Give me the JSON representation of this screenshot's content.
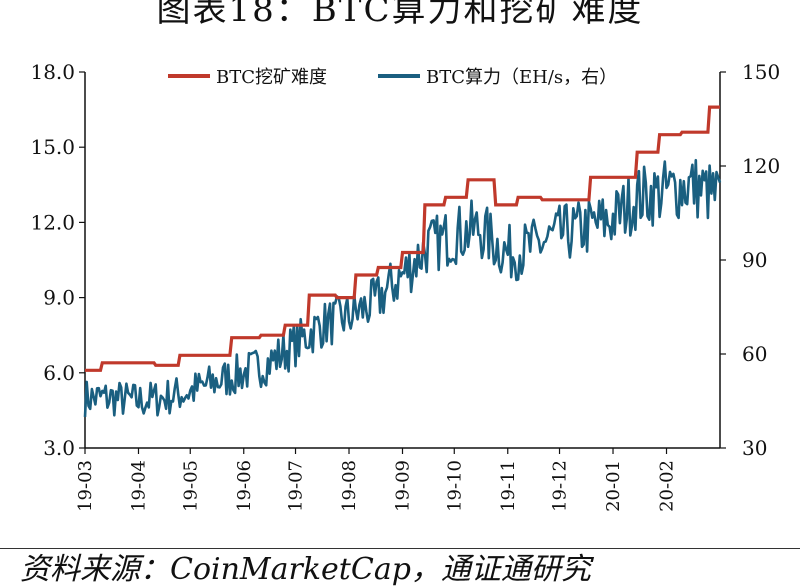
{
  "title": "图表18：BTC算力和挖矿难度",
  "source_text": "资料来源：CoinMarketCap，通证通研究",
  "chart_data": {
    "type": "line",
    "title": "图表18：BTC算力和挖矿难度",
    "x_ticks": [
      "19-03",
      "19-04",
      "19-05",
      "19-06",
      "19-07",
      "19-08",
      "19-09",
      "19-10",
      "19-11",
      "19-12",
      "20-01",
      "20-02"
    ],
    "y_left": {
      "range": [
        3.0,
        18.0
      ],
      "ticks": [
        "3.0",
        "6.0",
        "9.0",
        "12.0",
        "15.0",
        "18.0"
      ]
    },
    "y_right": {
      "range": [
        30,
        150
      ],
      "ticks": [
        "30",
        "60",
        "90",
        "120",
        "150"
      ]
    },
    "legend": [
      "BTC挖矿难度",
      "BTC算力（EH/s，右）"
    ],
    "legend_position": "top",
    "grid": false,
    "colors": {
      "difficulty": "#c0392b",
      "hashrate": "#1a5f80"
    },
    "series": [
      {
        "name": "BTC挖矿难度",
        "axis": "left",
        "step": true,
        "points": [
          [
            "2019-03-01",
            6.1
          ],
          [
            "2019-03-10",
            6.1
          ],
          [
            "2019-03-11",
            6.4
          ],
          [
            "2019-03-25",
            6.4
          ],
          [
            "2019-03-26",
            6.4
          ],
          [
            "2019-04-10",
            6.4
          ],
          [
            "2019-04-11",
            6.3
          ],
          [
            "2019-04-24",
            6.3
          ],
          [
            "2019-04-25",
            6.7
          ],
          [
            "2019-05-10",
            6.7
          ],
          [
            "2019-05-11",
            6.7
          ],
          [
            "2019-05-24",
            6.7
          ],
          [
            "2019-05-25",
            7.4
          ],
          [
            "2019-06-10",
            7.4
          ],
          [
            "2019-06-11",
            7.5
          ],
          [
            "2019-06-24",
            7.5
          ],
          [
            "2019-06-25",
            7.9
          ],
          [
            "2019-07-08",
            7.9
          ],
          [
            "2019-07-09",
            9.1
          ],
          [
            "2019-07-24",
            9.1
          ],
          [
            "2019-07-25",
            9.0
          ],
          [
            "2019-08-04",
            9.0
          ],
          [
            "2019-08-05",
            9.9
          ],
          [
            "2019-08-17",
            9.9
          ],
          [
            "2019-08-18",
            10.2
          ],
          [
            "2019-08-31",
            10.2
          ],
          [
            "2019-09-01",
            10.8
          ],
          [
            "2019-09-13",
            10.8
          ],
          [
            "2019-09-14",
            12.7
          ],
          [
            "2019-09-25",
            12.7
          ],
          [
            "2019-09-26",
            13.0
          ],
          [
            "2019-10-08",
            13.0
          ],
          [
            "2019-10-09",
            13.7
          ],
          [
            "2019-10-24",
            13.7
          ],
          [
            "2019-10-25",
            12.7
          ],
          [
            "2019-11-06",
            12.7
          ],
          [
            "2019-11-07",
            13.0
          ],
          [
            "2019-11-20",
            13.0
          ],
          [
            "2019-11-21",
            12.9
          ],
          [
            "2019-12-05",
            12.9
          ],
          [
            "2019-12-06",
            12.9
          ],
          [
            "2019-12-18",
            12.9
          ],
          [
            "2019-12-19",
            13.8
          ],
          [
            "2020-01-01",
            13.8
          ],
          [
            "2020-01-02",
            13.8
          ],
          [
            "2020-01-14",
            13.8
          ],
          [
            "2020-01-15",
            14.8
          ],
          [
            "2020-01-27",
            14.8
          ],
          [
            "2020-01-28",
            15.5
          ],
          [
            "2020-02-09",
            15.5
          ],
          [
            "2020-02-10",
            15.6
          ],
          [
            "2020-02-25",
            15.6
          ],
          [
            "2020-02-26",
            16.6
          ],
          [
            "2020-03-03",
            16.6
          ]
        ]
      },
      {
        "name": "BTC算力（EH/s，右）",
        "axis": "right",
        "key_points": [
          [
            "2019-03-01",
            46
          ],
          [
            "2019-03-15",
            46
          ],
          [
            "2019-04-01",
            45
          ],
          [
            "2019-04-15",
            46
          ],
          [
            "2019-05-01",
            48
          ],
          [
            "2019-05-15",
            51
          ],
          [
            "2019-06-01",
            54
          ],
          [
            "2019-06-15",
            57
          ],
          [
            "2019-07-01",
            63
          ],
          [
            "2019-07-15",
            69
          ],
          [
            "2019-08-01",
            72
          ],
          [
            "2019-08-15",
            76
          ],
          [
            "2019-09-01",
            85
          ],
          [
            "2019-09-15",
            94
          ],
          [
            "2019-10-01",
            98
          ],
          [
            "2019-10-15",
            100
          ],
          [
            "2019-11-01",
            92
          ],
          [
            "2019-11-15",
            94
          ],
          [
            "2019-12-01",
            98
          ],
          [
            "2019-12-15",
            100
          ],
          [
            "2020-01-01",
            103
          ],
          [
            "2020-01-15",
            110
          ],
          [
            "2020-02-01",
            112
          ],
          [
            "2020-02-15",
            114
          ],
          [
            "2020-03-03",
            110
          ]
        ],
        "noise_amplitude": 6
      }
    ]
  }
}
